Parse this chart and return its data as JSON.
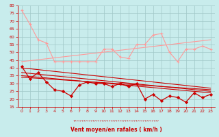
{
  "xlabel": "Vent moyen/en rafales ( km/h )",
  "bg_color": "#c8ecec",
  "grid_color": "#a0c8c8",
  "line_color_dark": "#cc0000",
  "line_color_light": "#ff9999",
  "xlim": [
    -0.5,
    23.5
  ],
  "ylim": [
    15,
    80
  ],
  "yticks": [
    15,
    20,
    25,
    30,
    35,
    40,
    45,
    50,
    55,
    60,
    65,
    70,
    75,
    80
  ],
  "xticks": [
    0,
    1,
    2,
    3,
    4,
    5,
    6,
    7,
    8,
    9,
    10,
    11,
    12,
    13,
    14,
    15,
    16,
    17,
    18,
    19,
    20,
    21,
    22,
    23
  ],
  "hours": [
    0,
    1,
    2,
    3,
    4,
    5,
    6,
    7,
    8,
    9,
    10,
    11,
    12,
    13,
    14,
    15,
    16,
    17,
    18,
    19,
    20,
    21,
    22,
    23
  ],
  "gust_line": [
    77,
    68,
    58,
    56,
    44,
    44,
    44,
    44,
    44,
    44,
    52,
    52,
    47,
    46,
    55,
    55,
    61,
    62,
    50,
    44,
    52,
    52,
    54,
    52
  ],
  "mean_line": [
    41,
    33,
    37,
    31,
    26,
    25,
    22,
    29,
    31,
    30,
    30,
    28,
    30,
    28,
    30,
    20,
    23,
    19,
    22,
    21,
    18,
    24,
    21,
    23
  ],
  "trend_gust": [
    44,
    58
  ],
  "trend_mean_lines": [
    [
      40,
      27
    ],
    [
      37,
      25
    ],
    [
      35,
      24
    ],
    [
      34,
      26
    ]
  ],
  "symbol_text": "????????????????????????????????????????????????????????????????????????????????????????????????????"
}
